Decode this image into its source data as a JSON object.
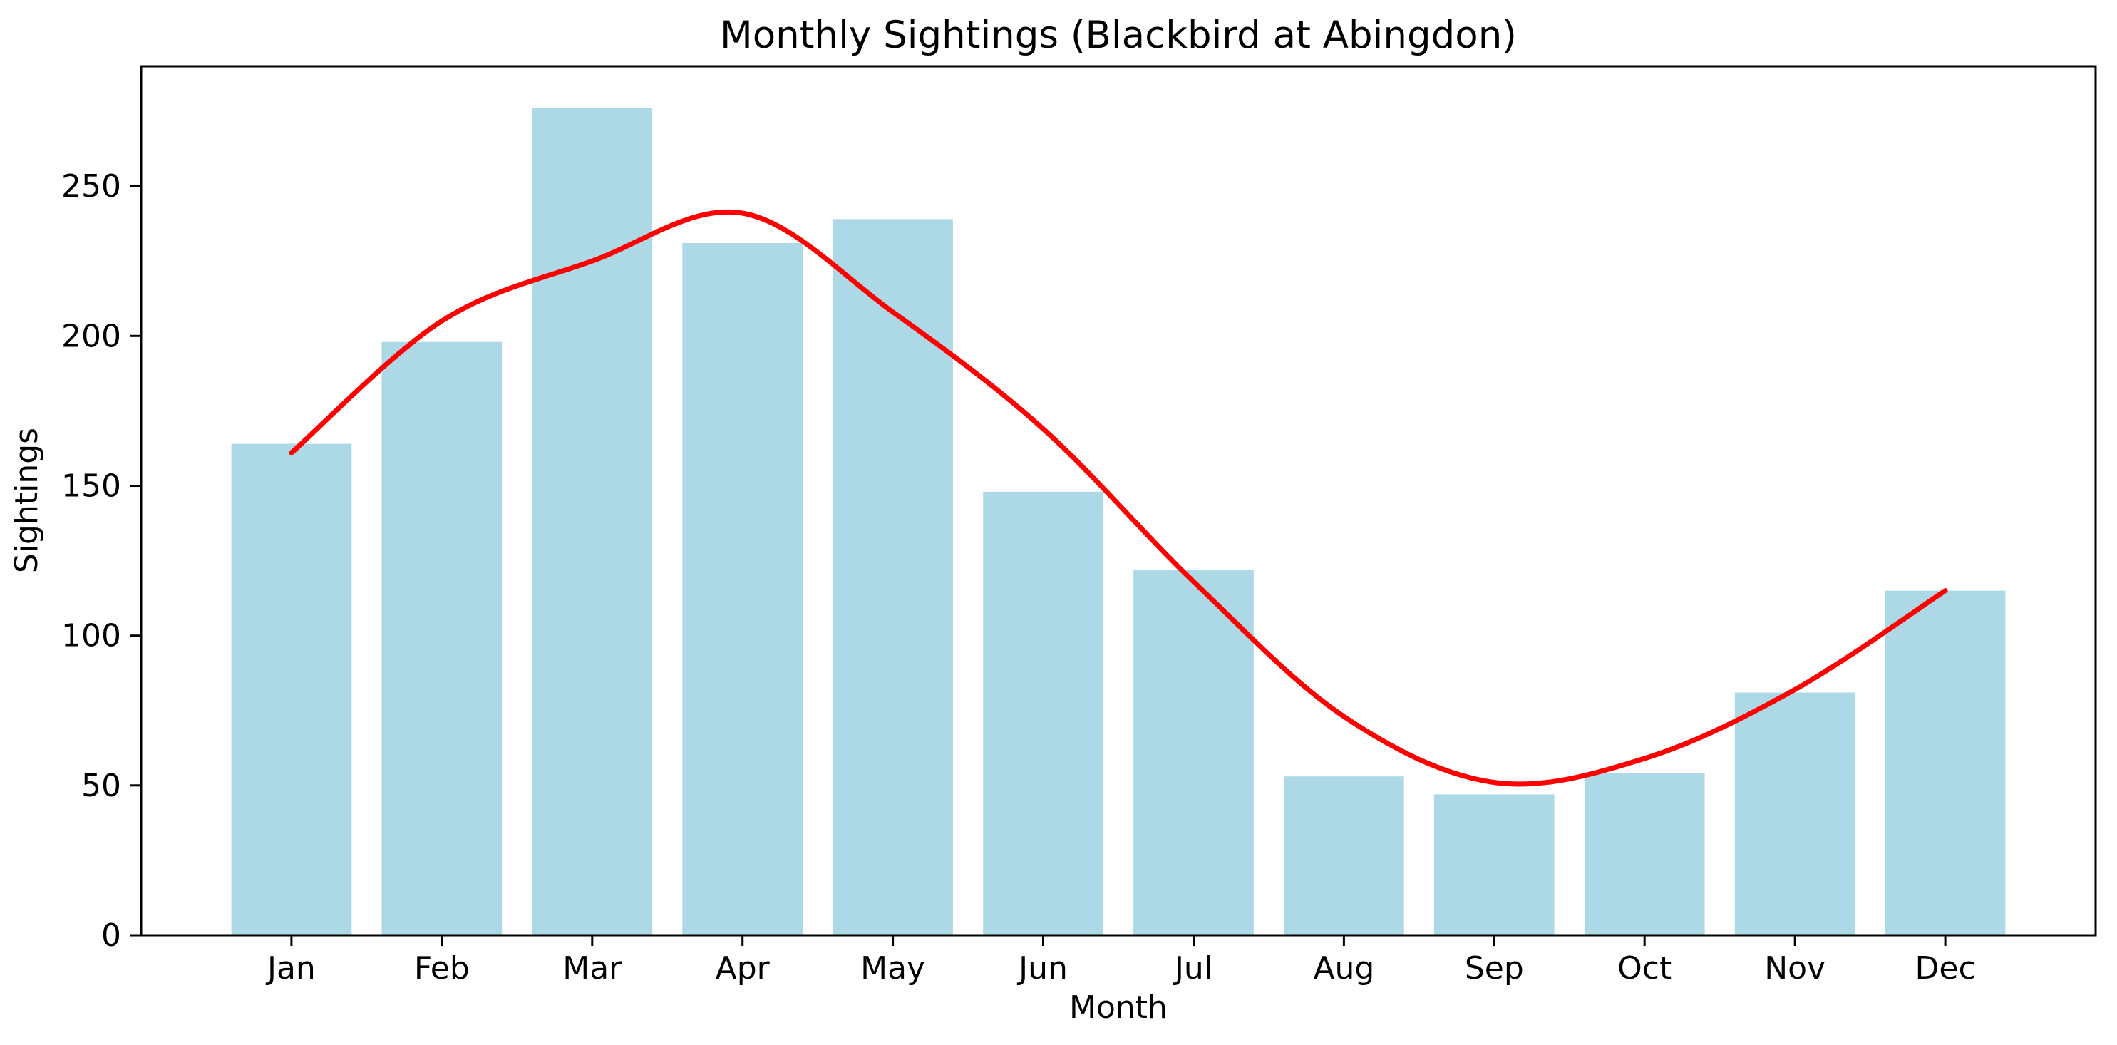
{
  "chart_data": {
    "type": "bar",
    "title": "Monthly Sightings (Blackbird at Abingdon)",
    "xlabel": "Month",
    "ylabel": "Sightings",
    "categories": [
      "Jan",
      "Feb",
      "Mar",
      "Apr",
      "May",
      "Jun",
      "Jul",
      "Aug",
      "Sep",
      "Oct",
      "Nov",
      "Dec"
    ],
    "values": [
      164,
      198,
      276,
      231,
      239,
      148,
      122,
      53,
      47,
      54,
      81,
      115
    ],
    "series": [
      {
        "name": "monthly-sightings-bars",
        "type": "bar",
        "color": "#add8e6",
        "values": [
          164,
          198,
          276,
          231,
          239,
          148,
          122,
          53,
          47,
          54,
          81,
          115
        ]
      },
      {
        "name": "smoothed-trend-line",
        "type": "line",
        "color": "#ff0000",
        "values": [
          161,
          205,
          225,
          241,
          208,
          169,
          118,
          73,
          51,
          59,
          82,
          115
        ]
      }
    ],
    "ylim": [
      0,
      290
    ],
    "yticks": [
      0,
      50,
      100,
      150,
      200,
      250
    ],
    "grid": false,
    "legend": false,
    "bar_color": "#add8e6",
    "line_color": "#ff0000",
    "axis_color": "#000000",
    "background_color": "#ffffff"
  }
}
